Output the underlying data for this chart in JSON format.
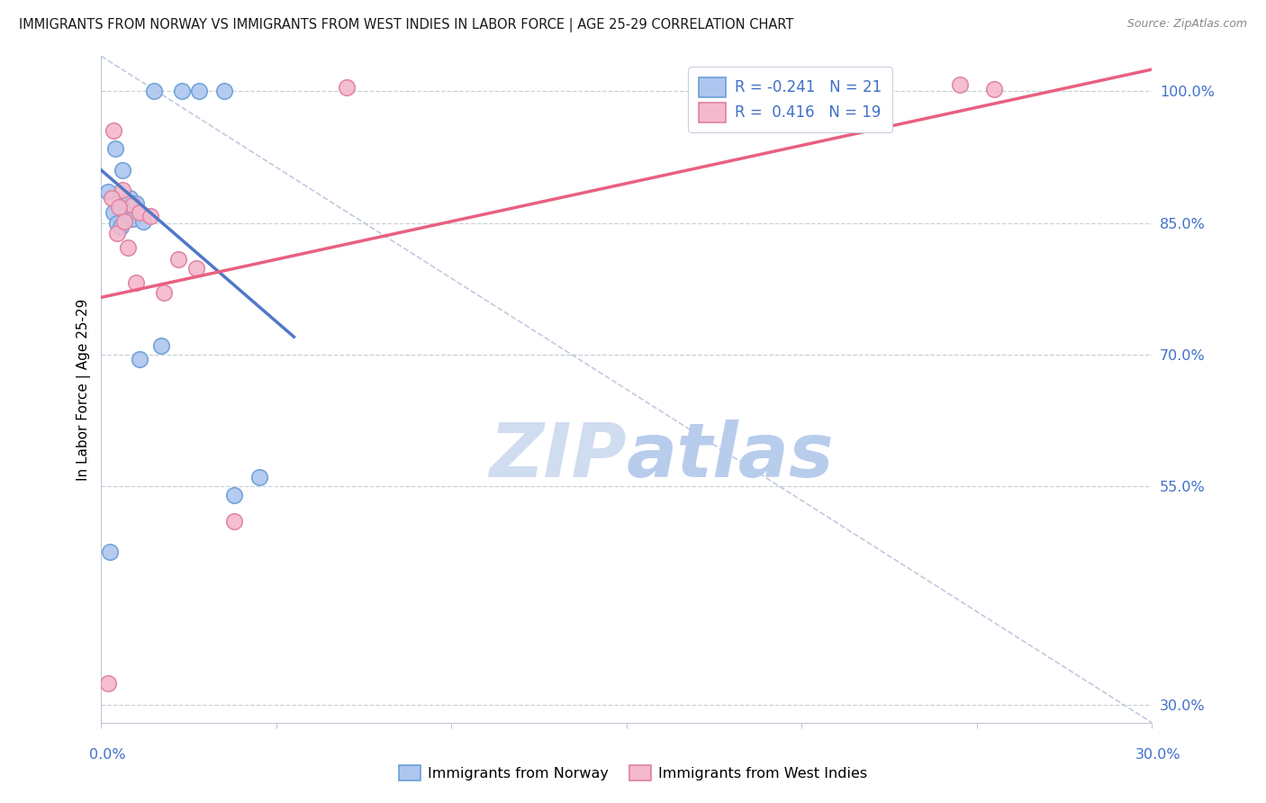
{
  "title": "IMMIGRANTS FROM NORWAY VS IMMIGRANTS FROM WEST INDIES IN LABOR FORCE | AGE 25-29 CORRELATION CHART",
  "source": "Source: ZipAtlas.com",
  "ylabel": "In Labor Force | Age 25-29",
  "y_ticks": [
    30.0,
    55.0,
    70.0,
    85.0,
    100.0
  ],
  "x_range": [
    0.0,
    30.0
  ],
  "y_range": [
    28.0,
    104.0
  ],
  "legend_norway_r": "R = -0.241",
  "legend_norway_n": "N = 21",
  "legend_wi_r": "R =  0.416",
  "legend_wi_n": "N = 19",
  "norway_color": "#aec6ef",
  "west_indies_color": "#f4b8cc",
  "norway_edge_color": "#6a9fd8",
  "west_indies_edge_color": "#e080a0",
  "norway_line_color": "#5078c8",
  "west_indies_line_color": "#e86080",
  "watermark_zip_color": "#c8d8f0",
  "watermark_atlas_color": "#c8d8f0",
  "norway_scatter_x": [
    1.5,
    2.3,
    2.8,
    3.5,
    0.4,
    0.6,
    0.2,
    0.8,
    1.0,
    0.5,
    0.35,
    0.7,
    0.9,
    1.2,
    0.45,
    0.55,
    4.5,
    3.8,
    1.1,
    1.7,
    0.25
  ],
  "norway_scatter_y": [
    100.0,
    100.0,
    100.0,
    100.0,
    93.5,
    91.0,
    88.5,
    87.8,
    87.2,
    86.8,
    86.2,
    86.0,
    85.5,
    85.2,
    85.0,
    84.5,
    56.0,
    54.0,
    69.5,
    71.0,
    47.5
  ],
  "west_indies_scatter_x": [
    7.0,
    0.35,
    0.6,
    0.9,
    1.1,
    1.4,
    0.45,
    0.75,
    2.2,
    2.7,
    3.8,
    1.0,
    1.8,
    24.5,
    25.5,
    0.2,
    0.3,
    0.5,
    0.65
  ],
  "west_indies_scatter_y": [
    100.5,
    95.5,
    88.8,
    87.0,
    86.2,
    85.8,
    83.8,
    82.2,
    80.8,
    79.8,
    51.0,
    78.2,
    77.0,
    100.8,
    100.2,
    32.5,
    87.8,
    86.8,
    85.2
  ],
  "norway_line_x0": 0.0,
  "norway_line_x1": 5.5,
  "norway_line_y0": 91.0,
  "norway_line_y1": 72.0,
  "wi_line_x0": 0.0,
  "wi_line_x1": 30.0,
  "wi_line_y0": 76.5,
  "wi_line_y1": 102.5,
  "dash_line_x0": 0.0,
  "dash_line_x1": 30.0,
  "dash_line_y0": 104.0,
  "dash_line_y1": 28.0,
  "x_tick_positions": [
    0.0,
    5.0,
    10.0,
    15.0,
    20.0,
    25.0,
    30.0
  ],
  "marker_size": 160
}
